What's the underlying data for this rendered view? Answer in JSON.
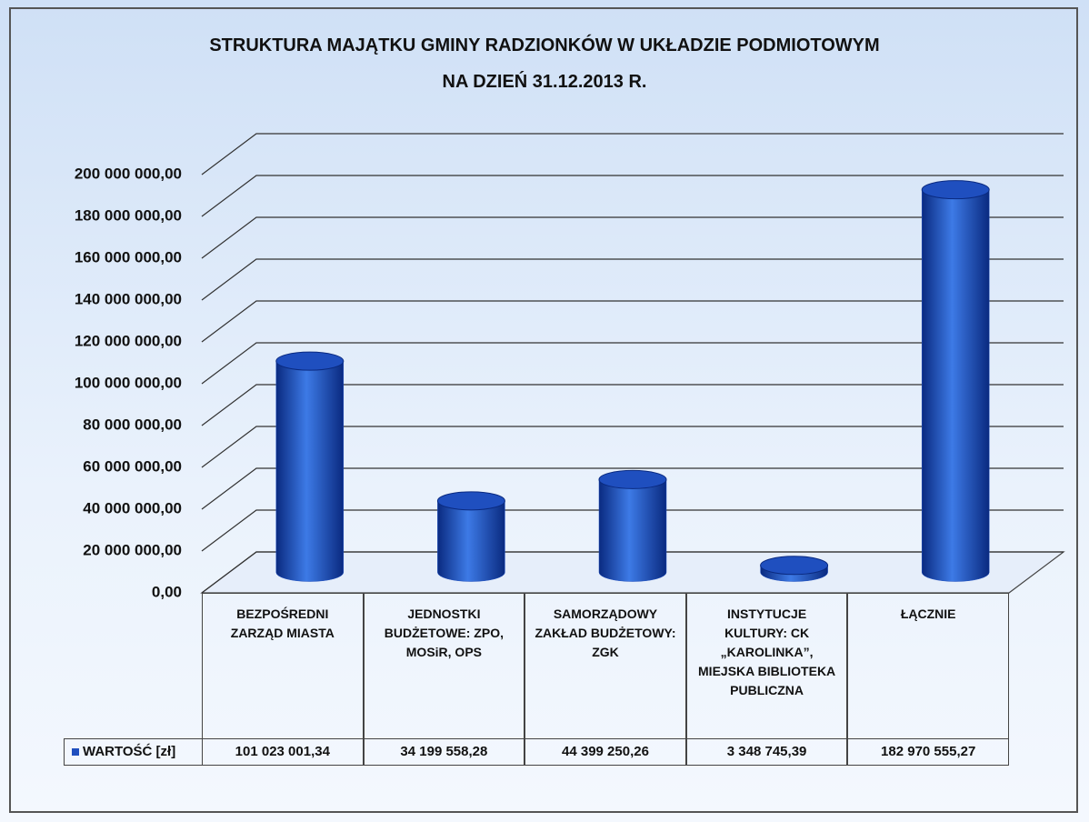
{
  "chart_data": {
    "type": "bar3d",
    "title": "STRUKTURA MAJĄTKU GMINY RADZIONKÓW W UKŁADZIE PODMIOTOWYM\nNA DZIEŃ 31.12.2013 R.",
    "categories": [
      "BEZPOŚREDNI ZARZĄD MIASTA",
      "JEDNOSTKI BUDŻETOWE: ZPO, MOSiR, OPS",
      "SAMORZĄDOWY ZAKŁAD BUDŻETOWY: ZGK",
      "INSTYTUCJE KULTURY: CK „KAROLINKA”, MIEJSKA BIBLIOTEKA PUBLICZNA",
      "ŁĄCZNIE"
    ],
    "series": [
      {
        "name": "WARTOŚĆ [zł]",
        "color": "#1f4fbf",
        "values": [
          101023001.34,
          34199558.28,
          44399250.26,
          3348745.39,
          182970555.27
        ],
        "value_labels": [
          "101 023 001,34",
          "34 199 558,28",
          "44 399 250,26",
          "3 348 745,39",
          "182 970 555,27"
        ]
      }
    ],
    "ylim": [
      0,
      200000000
    ],
    "yticks": [
      {
        "value": 0,
        "label": "0,00"
      },
      {
        "value": 20000000,
        "label": "20 000 000,00"
      },
      {
        "value": 40000000,
        "label": "40 000 000,00"
      },
      {
        "value": 60000000,
        "label": "60 000 000,00"
      },
      {
        "value": 80000000,
        "label": "80 000 000,00"
      },
      {
        "value": 100000000,
        "label": "100 000 000,00"
      },
      {
        "value": 120000000,
        "label": "120 000 000,00"
      },
      {
        "value": 140000000,
        "label": "140 000 000,00"
      },
      {
        "value": 160000000,
        "label": "160 000 000,00"
      },
      {
        "value": 180000000,
        "label": "180 000 000,00"
      },
      {
        "value": 200000000,
        "label": "200 000 000,00"
      }
    ],
    "grid": true
  }
}
